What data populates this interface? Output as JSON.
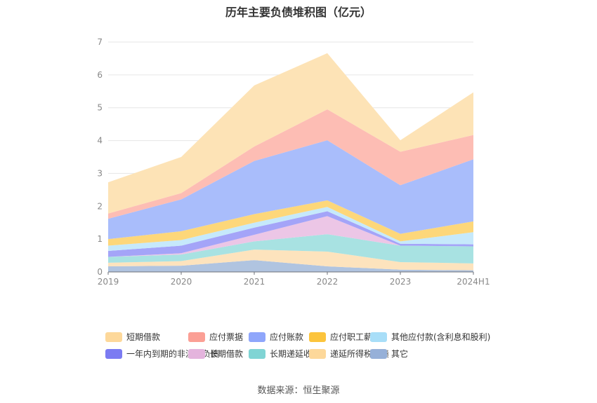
{
  "chart_data": {
    "type": "area",
    "stacked": true,
    "title": "历年主要负债堆积图（亿元）",
    "source": "数据来源：恒生聚源",
    "x": [
      "2019",
      "2020",
      "2021",
      "2022",
      "2023",
      "2024H1"
    ],
    "ylim": [
      0,
      7
    ],
    "yticks": [
      0,
      1,
      2,
      3,
      4,
      5,
      6,
      7
    ],
    "grid": true,
    "legend_position": "bottom",
    "series": [
      {
        "name": "其它",
        "color": "#b0c4e0",
        "values": [
          0.17,
          0.19,
          0.36,
          0.17,
          0.07,
          0.05
        ]
      },
      {
        "name": "递延所得税负债",
        "color": "#fde3bd",
        "values": [
          0.11,
          0.14,
          0.32,
          0.45,
          0.23,
          0.21
        ]
      },
      {
        "name": "长期递延收益",
        "color": "#a8e2e2",
        "values": [
          0.18,
          0.2,
          0.25,
          0.53,
          0.5,
          0.52
        ]
      },
      {
        "name": "长期借款",
        "color": "#ecc6e6",
        "values": [
          0.0,
          0.04,
          0.2,
          0.55,
          0.0,
          0.0
        ]
      },
      {
        "name": "一年内到期的非流动负债",
        "color": "#a4a4f8",
        "values": [
          0.18,
          0.23,
          0.22,
          0.15,
          0.06,
          0.06
        ]
      },
      {
        "name": "其他应付款(含利息和股利)",
        "color": "#c6e9fb",
        "values": [
          0.16,
          0.17,
          0.15,
          0.13,
          0.07,
          0.37
        ]
      },
      {
        "name": "应付职工薪酬",
        "color": "#fdd77a",
        "values": [
          0.2,
          0.27,
          0.26,
          0.2,
          0.23,
          0.33
        ]
      },
      {
        "name": "应付账款",
        "color": "#a9bdfb",
        "values": [
          0.62,
          0.97,
          1.62,
          1.83,
          1.48,
          1.89
        ]
      },
      {
        "name": "应付票据",
        "color": "#fdbdb4",
        "values": [
          0.16,
          0.19,
          0.44,
          0.94,
          1.02,
          0.74
        ]
      },
      {
        "name": "短期借款",
        "color": "#fde3b6",
        "values": [
          0.95,
          1.1,
          1.86,
          1.71,
          0.35,
          1.3
        ]
      }
    ],
    "legend_order": [
      "短期借款",
      "应付票据",
      "应付账款",
      "应付职工薪酬",
      "其他应付款(含利息和股利)",
      "一年内到期的非流动负债",
      "长期借款",
      "长期递延收益",
      "递延所得税负债",
      "其它"
    ],
    "legend_swatch_colors": {
      "短期借款": "#fdd89a",
      "应付票据": "#fb9f95",
      "应付账款": "#8fa6fb",
      "应付职工薪酬": "#fcc43c",
      "其他应付款(含利息和股利)": "#a8def8",
      "一年内到期的非流动负债": "#7b7bf2",
      "长期借款": "#e4b4dd",
      "长期递延收益": "#80d4d4",
      "递延所得税负债": "#fdd89a",
      "其它": "#96b0d8"
    }
  }
}
